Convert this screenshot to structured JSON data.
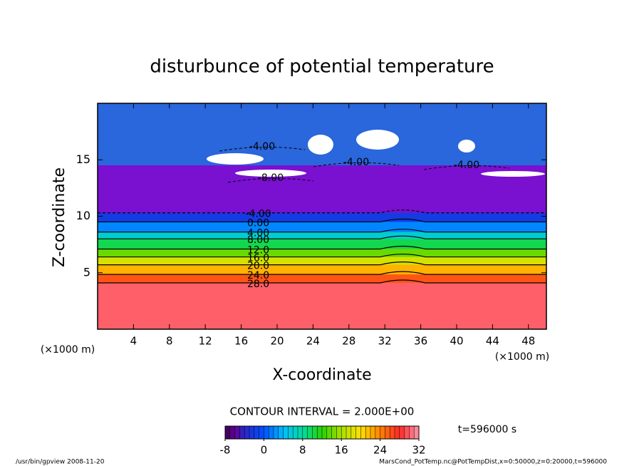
{
  "chart_data": {
    "type": "contour",
    "title": "disturbunce of potential temperature",
    "xlabel": "X-coordinate",
    "ylabel": "Z-coordinate",
    "x_unit": "(×1000 m)",
    "y_unit": "(×1000 m)",
    "xlim": [
      0,
      50
    ],
    "xticks": [
      4,
      8,
      12,
      16,
      20,
      24,
      28,
      32,
      36,
      40,
      44,
      48
    ],
    "ylim": [
      0,
      20
    ],
    "yticks": [
      5,
      10,
      15
    ],
    "levels": [
      28,
      24,
      20,
      16,
      12,
      8,
      4,
      0,
      -4
    ],
    "level_labels": [
      "28.0",
      "24.0",
      "20.0",
      "16.0",
      "12.0",
      "8.00",
      "4.00",
      "0.00",
      "-4.00"
    ],
    "contour_z": [
      4.1,
      4.85,
      5.7,
      6.4,
      7.1,
      8.0,
      8.6,
      9.5,
      10.3
    ],
    "annotations": [
      "-4.00",
      "-8.00",
      "-4.00",
      "-4.00"
    ],
    "contour_interval": "CONTOUR INTERVAL = 2.000E+00",
    "time": "t=596000 s",
    "colorbar": {
      "lim": [
        -8,
        32
      ],
      "ticks": [
        -8,
        0,
        8,
        16,
        24,
        32
      ]
    },
    "footer_left": "/usr/bin/gpview  2008-11-20",
    "footer_right": "MarsCond_PotTemp.nc@PotTempDist,x=0:50000,z=0:20000,t=596000"
  }
}
